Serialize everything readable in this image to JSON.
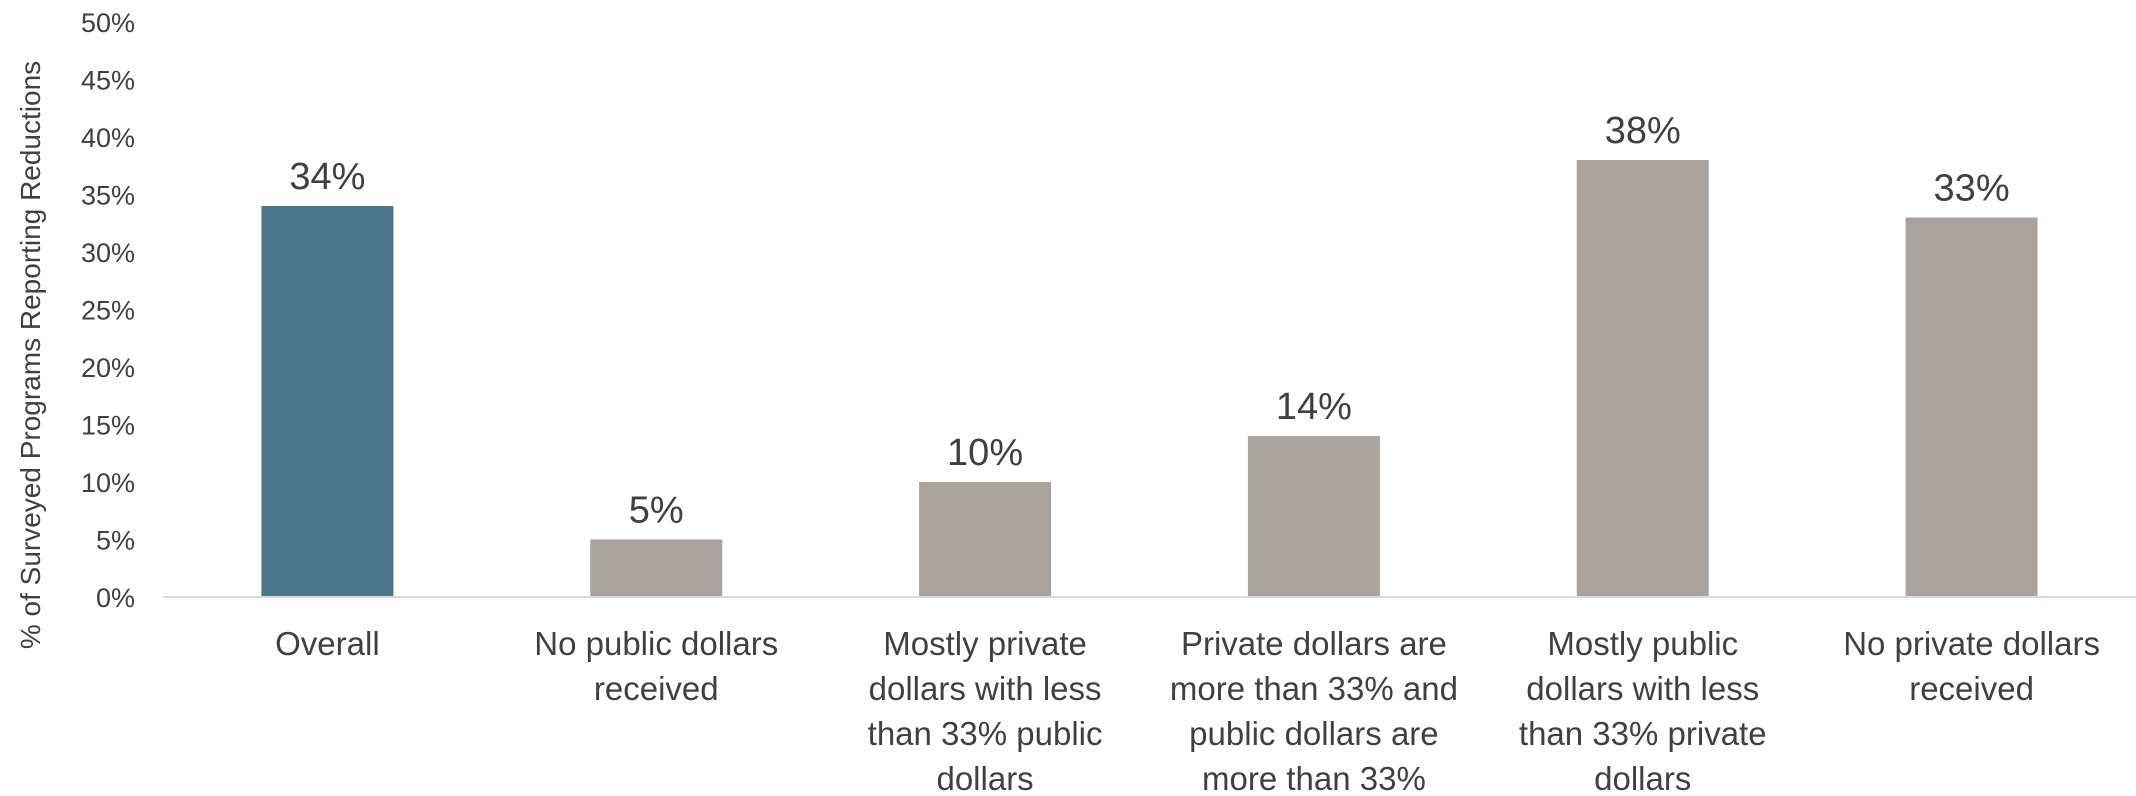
{
  "chart_data": {
    "type": "bar",
    "title": "",
    "xlabel": "",
    "ylabel": "% of Surveyed Programs Reporting Reductions",
    "ylim": [
      0,
      50
    ],
    "y_ticks": [
      "0%",
      "5%",
      "10%",
      "15%",
      "20%",
      "25%",
      "30%",
      "35%",
      "40%",
      "45%",
      "50%"
    ],
    "y_tick_values": [
      0,
      5,
      10,
      15,
      20,
      25,
      30,
      35,
      40,
      45,
      50
    ],
    "grid": false,
    "legend": "none",
    "categories": [
      [
        "Overall"
      ],
      [
        "No public dollars",
        "received"
      ],
      [
        "Mostly private",
        "dollars with less",
        "than 33% public",
        "dollars"
      ],
      [
        "Private dollars are",
        "more than 33% and",
        "public dollars are",
        "more than 33%"
      ],
      [
        "Mostly public",
        "dollars with less",
        "than 33% private",
        "dollars"
      ],
      [
        "No private dollars",
        "received"
      ]
    ],
    "values": [
      34,
      5,
      10,
      14,
      38,
      33
    ],
    "data_labels": [
      "34%",
      "5%",
      "10%",
      "14%",
      "38%",
      "33%"
    ],
    "colors": [
      "#4a778c",
      "#aaa29c",
      "#aaa29c",
      "#aaa29c",
      "#aaa29c",
      "#aaa29c"
    ],
    "axis_color": "#d9d9d9",
    "text_color": "#404040"
  }
}
